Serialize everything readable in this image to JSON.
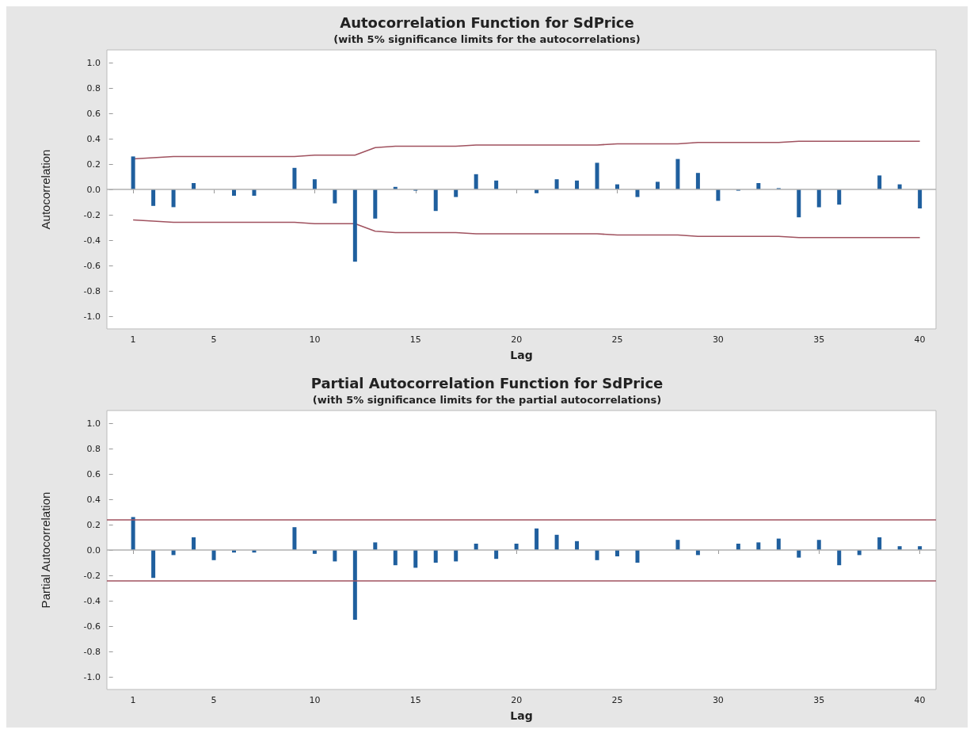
{
  "chart_data": [
    {
      "type": "bar",
      "title": "Autocorrelation Function for SdPrice",
      "subtitle": "(with 5% significance limits for the autocorrelations)",
      "xlabel": "Lag",
      "ylabel": "Autocorrelation",
      "x": [
        1,
        2,
        3,
        4,
        5,
        6,
        7,
        8,
        9,
        10,
        11,
        12,
        13,
        14,
        15,
        16,
        17,
        18,
        19,
        20,
        21,
        22,
        23,
        24,
        25,
        26,
        27,
        28,
        29,
        30,
        31,
        32,
        33,
        34,
        35,
        36,
        37,
        38,
        39,
        40
      ],
      "series": [
        {
          "color": "#1f5f9e",
          "values": [
            0.26,
            -0.13,
            -0.14,
            0.05,
            0.0,
            -0.05,
            -0.05,
            0.0,
            0.17,
            0.08,
            -0.11,
            -0.57,
            -0.23,
            0.02,
            -0.01,
            -0.17,
            -0.06,
            0.12,
            0.07,
            0.0,
            -0.03,
            0.08,
            0.07,
            0.21,
            0.04,
            -0.06,
            0.06,
            0.24,
            0.13,
            -0.09,
            -0.01,
            0.05,
            0.01,
            -0.22,
            -0.14,
            -0.12,
            0.0,
            0.11,
            0.04,
            -0.15
          ]
        },
        {
          "type": "line",
          "color": "#a0525f",
          "values": [
            0.24,
            0.25,
            0.26,
            0.26,
            0.26,
            0.26,
            0.26,
            0.26,
            0.26,
            0.27,
            0.27,
            0.27,
            0.33,
            0.34,
            0.34,
            0.34,
            0.34,
            0.35,
            0.35,
            0.35,
            0.35,
            0.35,
            0.35,
            0.35,
            0.36,
            0.36,
            0.36,
            0.36,
            0.37,
            0.37,
            0.37,
            0.37,
            0.37,
            0.38,
            0.38,
            0.38,
            0.38,
            0.38,
            0.38,
            0.38
          ]
        },
        {
          "type": "line",
          "color": "#a0525f",
          "values": [
            -0.24,
            -0.25,
            -0.26,
            -0.26,
            -0.26,
            -0.26,
            -0.26,
            -0.26,
            -0.26,
            -0.27,
            -0.27,
            -0.27,
            -0.33,
            -0.34,
            -0.34,
            -0.34,
            -0.34,
            -0.35,
            -0.35,
            -0.35,
            -0.35,
            -0.35,
            -0.35,
            -0.35,
            -0.36,
            -0.36,
            -0.36,
            -0.36,
            -0.37,
            -0.37,
            -0.37,
            -0.37,
            -0.37,
            -0.38,
            -0.38,
            -0.38,
            -0.38,
            -0.38,
            -0.38,
            -0.38
          ]
        }
      ],
      "ref_lines": [
        {
          "axis": "y",
          "value": 0,
          "color": "#b0b0b0"
        }
      ],
      "xlim": [
        -0.3,
        40.8
      ],
      "xticks": [
        1,
        5,
        10,
        15,
        20,
        25,
        30,
        35,
        40
      ],
      "ylim": [
        -1.1,
        1.1
      ],
      "yticks": [
        {
          "value": -1,
          "label": "-1.0"
        },
        {
          "value": -0.8,
          "label": "-0.8"
        },
        {
          "value": -0.6,
          "label": "-0.6"
        },
        {
          "value": -0.4,
          "label": "-0.4"
        },
        {
          "value": -0.2,
          "label": "-0.2"
        },
        {
          "value": 0,
          "label": "0.0"
        },
        {
          "value": 0.2,
          "label": "0.2"
        },
        {
          "value": 0.4,
          "label": "0.4"
        },
        {
          "value": 0.6,
          "label": "0.6"
        },
        {
          "value": 0.8,
          "label": "0.8"
        },
        {
          "value": 1,
          "label": "1.0"
        }
      ],
      "grid": false
    },
    {
      "type": "bar",
      "title": "Partial Autocorrelation Function for SdPrice",
      "subtitle": "(with 5% significance limits for the partial autocorrelations)",
      "xlabel": "Lag",
      "ylabel": "Partial Autocorrelation",
      "x": [
        1,
        2,
        3,
        4,
        5,
        6,
        7,
        8,
        9,
        10,
        11,
        12,
        13,
        14,
        15,
        16,
        17,
        18,
        19,
        20,
        21,
        22,
        23,
        24,
        25,
        26,
        27,
        28,
        29,
        30,
        31,
        32,
        33,
        34,
        35,
        36,
        37,
        38,
        39,
        40
      ],
      "series": [
        {
          "color": "#1f5f9e",
          "values": [
            0.26,
            -0.22,
            -0.04,
            0.1,
            -0.08,
            -0.02,
            -0.02,
            0.0,
            0.18,
            -0.03,
            -0.09,
            -0.55,
            0.06,
            -0.12,
            -0.14,
            -0.1,
            -0.09,
            0.05,
            -0.07,
            0.05,
            0.17,
            0.12,
            0.07,
            -0.08,
            -0.05,
            -0.1,
            0.0,
            0.08,
            -0.04,
            0.0,
            0.05,
            0.06,
            0.09,
            -0.06,
            0.08,
            -0.12,
            -0.04,
            0.1,
            0.03,
            0.03
          ]
        }
      ],
      "ref_lines": [
        {
          "axis": "y",
          "value": 0,
          "color": "#b0b0b0"
        },
        {
          "axis": "y",
          "value": 0.24,
          "color": "#a0525f"
        },
        {
          "axis": "y",
          "value": -0.24,
          "color": "#a0525f"
        }
      ],
      "xlim": [
        -0.3,
        40.8
      ],
      "xticks": [
        1,
        5,
        10,
        15,
        20,
        25,
        30,
        35,
        40
      ],
      "ylim": [
        -1.1,
        1.1
      ],
      "yticks": [
        {
          "value": -1,
          "label": "-1.0"
        },
        {
          "value": -0.8,
          "label": "-0.8"
        },
        {
          "value": -0.6,
          "label": "-0.6"
        },
        {
          "value": -0.4,
          "label": "-0.4"
        },
        {
          "value": -0.2,
          "label": "-0.2"
        },
        {
          "value": 0,
          "label": "0.0"
        },
        {
          "value": 0.2,
          "label": "0.2"
        },
        {
          "value": 0.4,
          "label": "0.4"
        },
        {
          "value": 0.6,
          "label": "0.6"
        },
        {
          "value": 0.8,
          "label": "0.8"
        },
        {
          "value": 1,
          "label": "1.0"
        }
      ],
      "grid": false
    }
  ]
}
